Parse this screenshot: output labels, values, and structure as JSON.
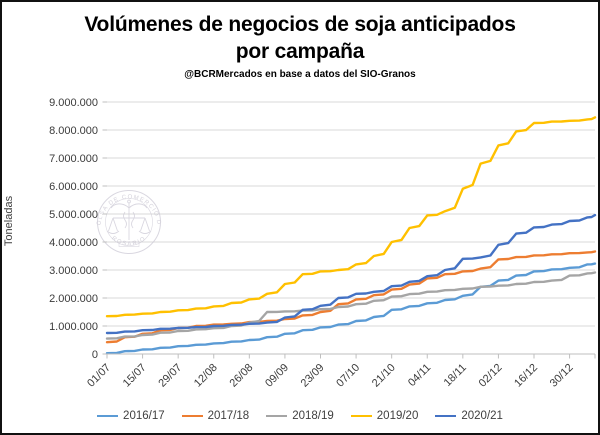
{
  "header": {
    "title_line1": "Volúmenes de negocios de soja anticipados",
    "title_line2": "por campaña",
    "subtitle": "@BCRMercados en base a datos del SIO-Granos"
  },
  "watermark": {
    "ring_text_top": "BOLSA DE COMERCIO DE",
    "ring_text_bottom": "ROSARIO"
  },
  "chart_data": {
    "type": "line",
    "title": "Volúmenes de negocios de soja anticipados por campaña",
    "ylabel": "Toneladas",
    "ylim": [
      0,
      9000000
    ],
    "y_tick_labels": [
      "0",
      "1.000.000",
      "2.000.000",
      "3.000.000",
      "4.000.000",
      "5.000.000",
      "6.000.000",
      "7.000.000",
      "8.000.000",
      "9.000.000"
    ],
    "x_tick_labels": [
      "01/07",
      "15/07",
      "29/07",
      "12/08",
      "26/08",
      "09/09",
      "23/09",
      "07/10",
      "21/10",
      "04/11",
      "18/11",
      "02/12",
      "16/12",
      "30/12"
    ],
    "x_tick_interval_days": 14,
    "x_range_days": [
      0,
      192
    ],
    "grid": true,
    "legend_position": "bottom",
    "x_days": [
      0,
      7,
      14,
      21,
      28,
      35,
      42,
      49,
      56,
      63,
      70,
      77,
      84,
      91,
      98,
      105,
      112,
      119,
      126,
      133,
      140,
      147,
      154,
      161,
      168,
      175,
      182,
      189,
      192
    ],
    "series": [
      {
        "name": "2016/17",
        "color": "#5B9BD5",
        "values": [
          30000,
          100000,
          160000,
          220000,
          280000,
          330000,
          380000,
          440000,
          500000,
          600000,
          720000,
          850000,
          950000,
          1050000,
          1180000,
          1320000,
          1580000,
          1700000,
          1810000,
          1930000,
          2080000,
          2400000,
          2620000,
          2800000,
          2950000,
          3020000,
          3080000,
          3200000,
          3230000
        ]
      },
      {
        "name": "2017/18",
        "color": "#ED7D31",
        "values": [
          420000,
          600000,
          720000,
          850000,
          930000,
          1000000,
          1050000,
          1080000,
          1140000,
          1180000,
          1250000,
          1380000,
          1500000,
          1780000,
          1950000,
          2100000,
          2300000,
          2480000,
          2700000,
          2850000,
          2950000,
          3050000,
          3380000,
          3460000,
          3520000,
          3560000,
          3600000,
          3630000,
          3660000
        ]
      },
      {
        "name": "2018/19",
        "color": "#A5A5A5",
        "values": [
          550000,
          620000,
          680000,
          760000,
          820000,
          880000,
          920000,
          1000000,
          1120000,
          1500000,
          1520000,
          1550000,
          1600000,
          1680000,
          1780000,
          1900000,
          2050000,
          2140000,
          2220000,
          2280000,
          2330000,
          2400000,
          2440000,
          2500000,
          2570000,
          2620000,
          2800000,
          2880000,
          2910000
        ]
      },
      {
        "name": "2019/20",
        "color": "#FFC000",
        "values": [
          1350000,
          1400000,
          1440000,
          1500000,
          1560000,
          1620000,
          1700000,
          1820000,
          1950000,
          2150000,
          2500000,
          2850000,
          2950000,
          3000000,
          3200000,
          3500000,
          4000000,
          4500000,
          4950000,
          5100000,
          5900000,
          6800000,
          7450000,
          7950000,
          8250000,
          8300000,
          8330000,
          8380000,
          8450000
        ]
      },
      {
        "name": "2020/21",
        "color": "#4472C4",
        "values": [
          750000,
          800000,
          850000,
          900000,
          930000,
          960000,
          1000000,
          1040000,
          1080000,
          1120000,
          1300000,
          1580000,
          1720000,
          2000000,
          2150000,
          2220000,
          2420000,
          2580000,
          2780000,
          3000000,
          3400000,
          3450000,
          3900000,
          4300000,
          4520000,
          4620000,
          4750000,
          4880000,
          4960000
        ]
      }
    ]
  }
}
